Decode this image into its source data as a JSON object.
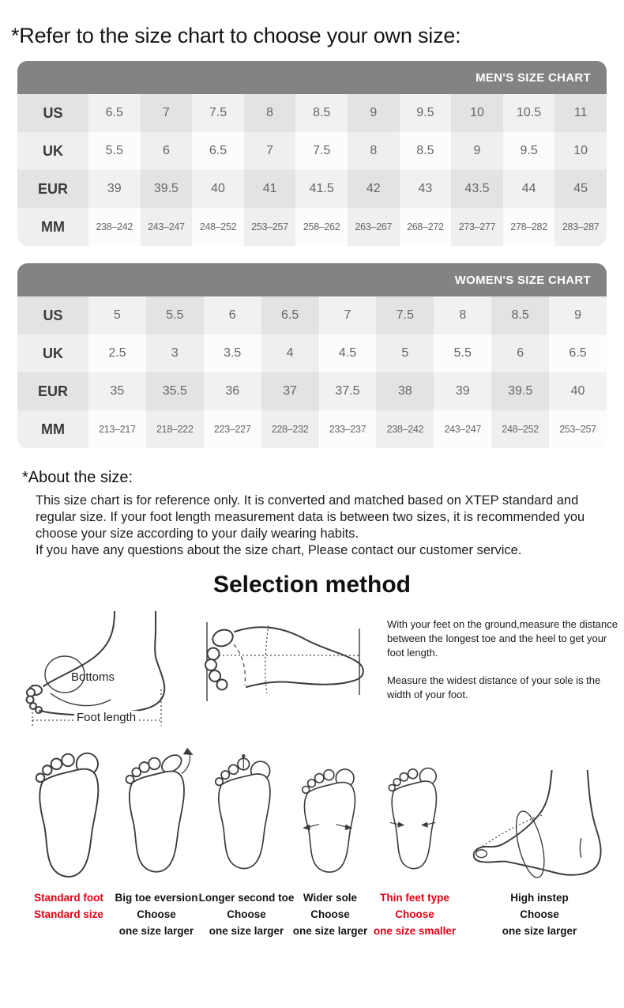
{
  "page": {
    "title": "*Refer to the size chart to choose your own size:"
  },
  "mens_chart": {
    "header": "MEN'S SIZE CHART",
    "rows": [
      {
        "label": "US",
        "values": [
          "6.5",
          "7",
          "7.5",
          "8",
          "8.5",
          "9",
          "9.5",
          "10",
          "10.5",
          "11"
        ]
      },
      {
        "label": "UK",
        "values": [
          "5.5",
          "6",
          "6.5",
          "7",
          "7.5",
          "8",
          "8.5",
          "9",
          "9.5",
          "10"
        ]
      },
      {
        "label": "EUR",
        "values": [
          "39",
          "39.5",
          "40",
          "41",
          "41.5",
          "42",
          "43",
          "43.5",
          "44",
          "45"
        ]
      },
      {
        "label": "MM",
        "values": [
          "238–242",
          "243–247",
          "248–252",
          "253–257",
          "258–262",
          "263–267",
          "268–272",
          "273–277",
          "278–282",
          "283–287"
        ]
      }
    ]
  },
  "womens_chart": {
    "header": "WOMEN'S SIZE CHART",
    "rows": [
      {
        "label": "US",
        "values": [
          "5",
          "5.5",
          "6",
          "6.5",
          "7",
          "7.5",
          "8",
          "8.5",
          "9"
        ]
      },
      {
        "label": "UK",
        "values": [
          "2.5",
          "3",
          "3.5",
          "4",
          "4.5",
          "5",
          "5.5",
          "6",
          "6.5"
        ]
      },
      {
        "label": "EUR",
        "values": [
          "35",
          "35.5",
          "36",
          "37",
          "37.5",
          "38",
          "39",
          "39.5",
          "40"
        ]
      },
      {
        "label": "MM",
        "values": [
          "213–217",
          "218–222",
          "223–227",
          "228–232",
          "233–237",
          "238–242",
          "243–247",
          "248–252",
          "253–257"
        ]
      }
    ]
  },
  "about": {
    "heading": "*About the size:",
    "line1": "This size chart is for reference only. It is converted and matched based on XTEP standard and regular size. If your foot length measurement data is between two sizes, it is recommended you choose your size according to your daily wearing habits.",
    "line2": "If you have any questions about the size chart, Please contact our customer service."
  },
  "selection": {
    "heading": "Selection method",
    "bottoms_label": "Bottoms",
    "foot_length_label": "Foot length",
    "measure_tip1": "With your feet on the ground,measure the distance between the longest toe and the heel to get your foot length.",
    "measure_tip2": "Measure the widest distance of your sole is the width of your foot."
  },
  "foot_types": [
    {
      "lines": [
        "Standard foot",
        "Standard size"
      ],
      "highlight": true
    },
    {
      "lines": [
        "Big toe eversion",
        "Choose",
        "one size larger"
      ],
      "highlight": false
    },
    {
      "lines": [
        "Longer second toe",
        "Choose",
        "one size larger"
      ],
      "highlight": false
    },
    {
      "lines": [
        "Wider sole",
        "Choose",
        "one size larger"
      ],
      "highlight": false
    },
    {
      "lines": [
        "Thin feet type",
        "Choose",
        "one size smaller"
      ],
      "highlight": true
    },
    {
      "lines": [
        "High instep",
        "Choose",
        "one size larger"
      ],
      "highlight": false
    }
  ],
  "colors": {
    "header_bar": "#838383",
    "accent_red": "#e60012",
    "cell_gray_light": "#f1f1f1",
    "cell_gray_dark": "#e3e3e3",
    "cell_white": "#fcfcfc",
    "cell_white_tint": "#efefef"
  }
}
